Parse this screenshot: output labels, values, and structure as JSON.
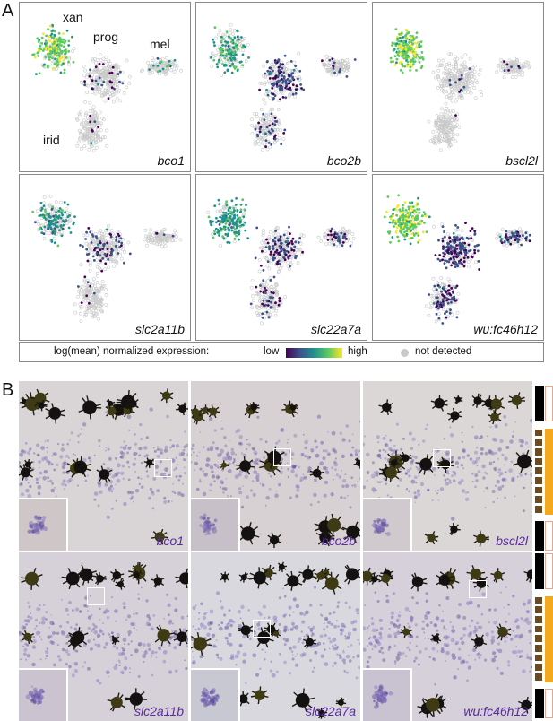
{
  "panel_a": {
    "letter": "A",
    "cluster_labels": {
      "xan": "xan",
      "prog": "prog",
      "mel": "mel",
      "irid": "irid"
    },
    "genes": [
      "bco1",
      "bco2b",
      "bscl2l",
      "slc2a11b",
      "slc22a7a",
      "wu:fc46h12"
    ],
    "legend": {
      "title": "log(mean) normalized expression:",
      "low": "low",
      "high": "high",
      "not_detected": "not detected",
      "colors": [
        "#440154",
        "#3b528b",
        "#21918c",
        "#5ec962",
        "#fde725"
      ],
      "not_detected_color": "#c9c9c9"
    }
  },
  "panel_b": {
    "letter": "B",
    "genes": [
      "bco1",
      "bco2b",
      "bscl2l",
      "slc2a11b",
      "slc22a7a",
      "wu:fc46h12"
    ],
    "label_color": "#5a2aa0",
    "stripe_colors": {
      "black": "#000000",
      "orange": "#f4a81d",
      "brown": "#6b4a1f"
    }
  }
}
